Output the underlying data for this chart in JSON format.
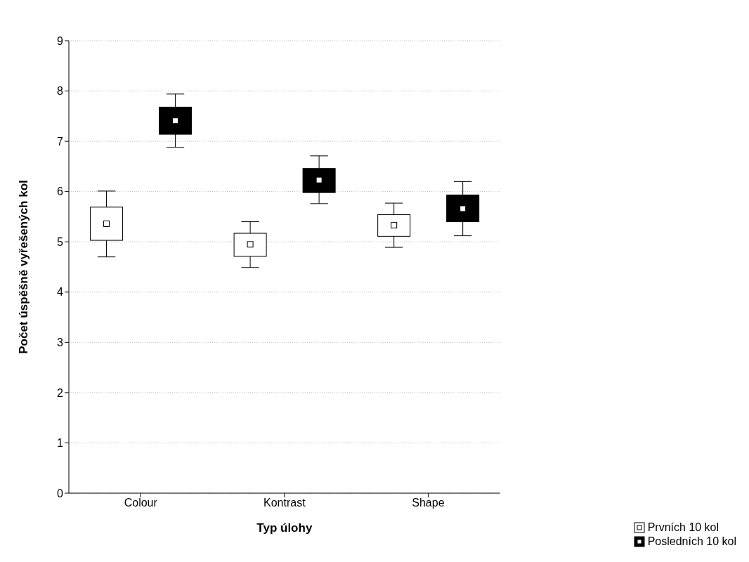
{
  "chart_data": {
    "type": "box",
    "xlabel": "Typ úlohy",
    "ylabel": "Počet úspěšně vyřešených kol",
    "categories": [
      "Colour",
      "Kontrast",
      "Shape"
    ],
    "ylim": [
      0,
      9
    ],
    "yticks": [
      0,
      1,
      2,
      3,
      4,
      5,
      6,
      7,
      8,
      9
    ],
    "grid": "y",
    "legend": "bottom right",
    "series": [
      {
        "name": "Prvních 10 kol",
        "color": "#ffffff",
        "boxes": [
          {
            "low": 4.7,
            "q1": 5.03,
            "median": 5.36,
            "q3": 5.69,
            "high": 6.01
          },
          {
            "low": 4.49,
            "q1": 4.71,
            "median": 4.95,
            "q3": 5.17,
            "high": 5.4
          },
          {
            "low": 4.89,
            "q1": 5.11,
            "median": 5.33,
            "q3": 5.54,
            "high": 5.77
          }
        ]
      },
      {
        "name": "Posledních 10 kol",
        "color": "#000000",
        "boxes": [
          {
            "low": 6.88,
            "q1": 7.14,
            "median": 7.41,
            "q3": 7.68,
            "high": 7.94
          },
          {
            "low": 5.76,
            "q1": 5.98,
            "median": 6.23,
            "q3": 6.46,
            "high": 6.71
          },
          {
            "low": 5.12,
            "q1": 5.4,
            "median": 5.66,
            "q3": 5.93,
            "high": 6.2
          }
        ]
      }
    ]
  }
}
